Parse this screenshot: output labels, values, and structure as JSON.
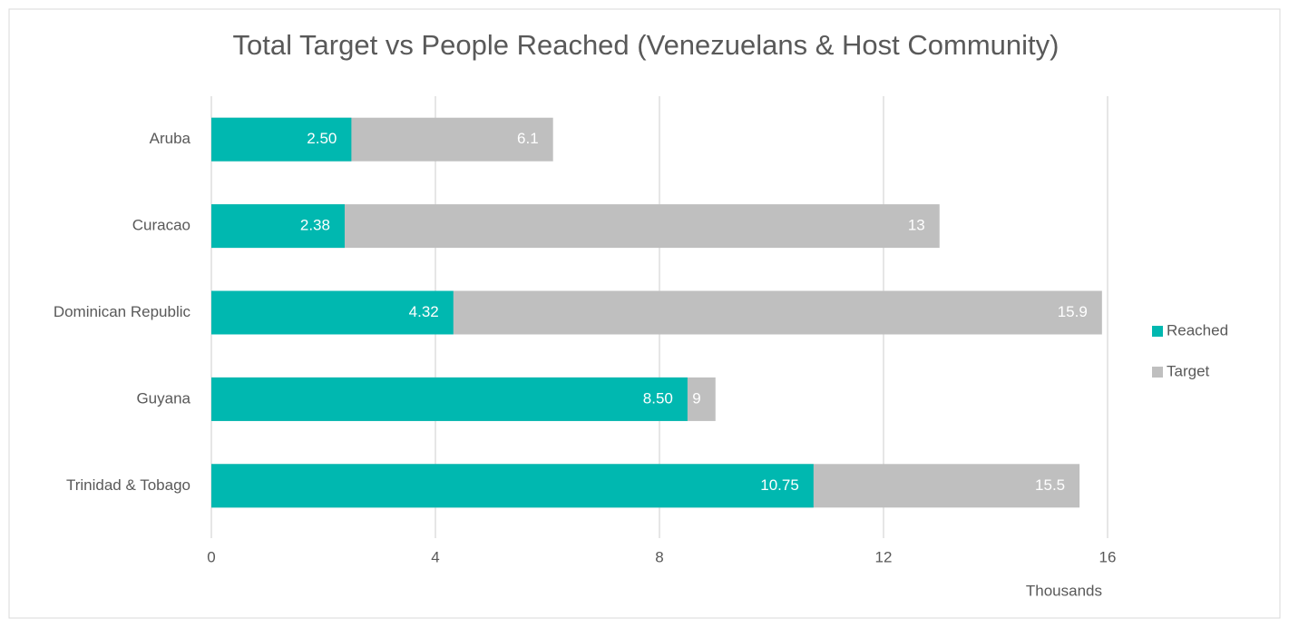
{
  "chart_data": {
    "type": "bar",
    "orientation": "horizontal",
    "barmode": "overlay",
    "title": "Total Target vs People Reached (Venezuelans & Host Community)",
    "x_axis_label": "Thousands",
    "categories": [
      "Aruba",
      "Curacao",
      "Dominican Republic",
      "Guyana",
      "Trinidad & Tobago"
    ],
    "series": [
      {
        "name": "Target",
        "color": "#bfbfbf",
        "values": [
          6.1,
          13,
          15.9,
          9,
          15.5
        ]
      },
      {
        "name": "Reached",
        "color": "#00b8b0",
        "values": [
          2.5,
          2.38,
          4.32,
          8.5,
          10.75
        ],
        "value_labels": [
          "2.50",
          "2.38",
          "4.32",
          "8.50",
          "10.75"
        ]
      }
    ],
    "legend_order": [
      "Reached",
      "Target"
    ],
    "legend": "right",
    "xlim": [
      0,
      16
    ],
    "xticks": [
      0,
      4,
      8,
      12,
      16
    ],
    "grid": true
  }
}
